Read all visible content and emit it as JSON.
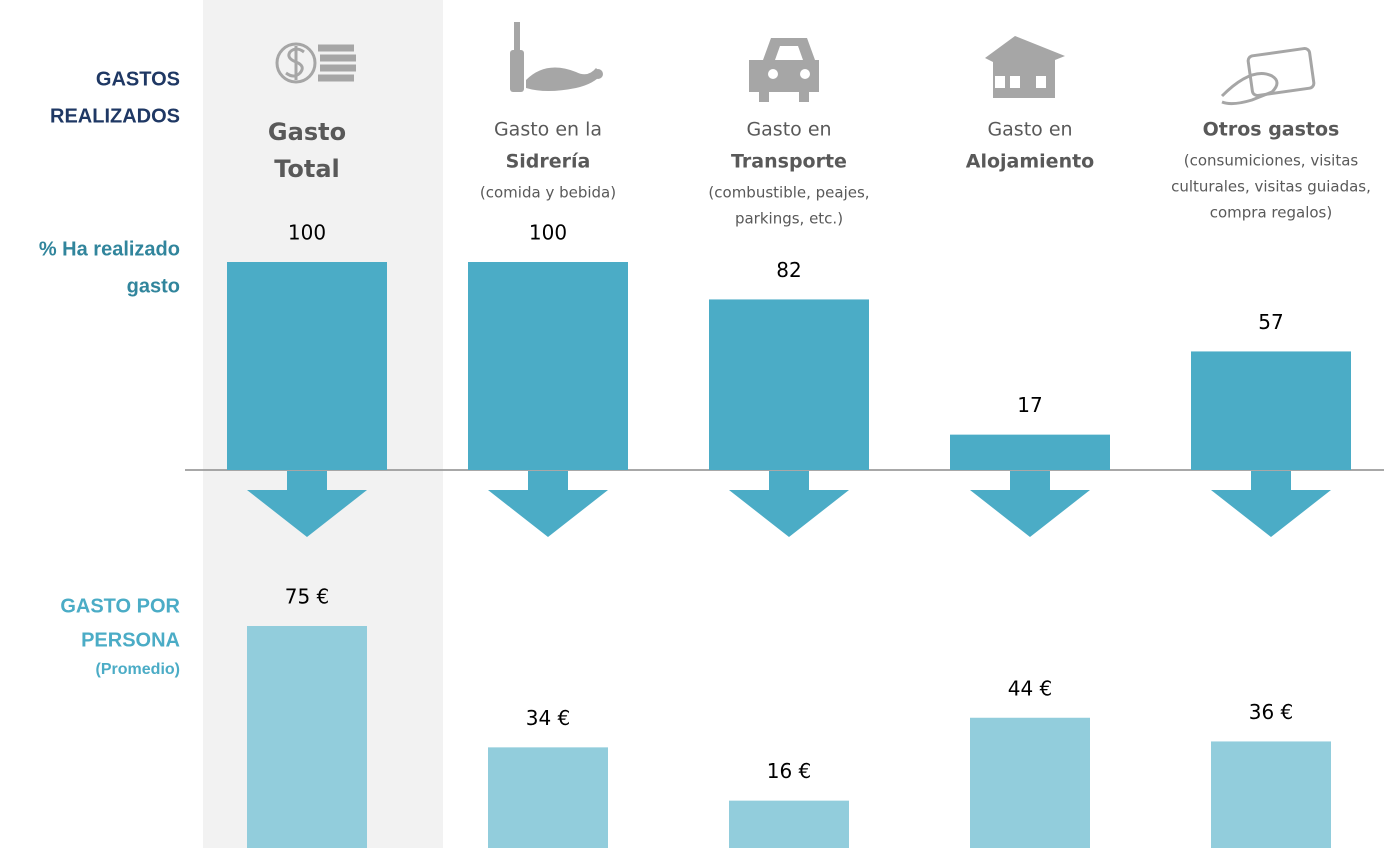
{
  "header": [
    "GASTOS",
    "REALIZADOS"
  ],
  "columns": [
    {
      "bold": [
        "Gasto",
        "Total"
      ]
    },
    {
      "light": "Gasto en la",
      "bold": [
        "Sidrería"
      ],
      "note": [
        "(comida y bebida)"
      ]
    },
    {
      "light": "Gasto en",
      "bold": [
        "Transporte"
      ],
      "note": [
        "(combustible, peajes,",
        "parkings, etc.)"
      ]
    },
    {
      "light": "Gasto en",
      "bold": [
        "Alojamiento"
      ]
    },
    {
      "bold": [
        "Otros gastos"
      ],
      "note": [
        "(consumiciones, visitas",
        "culturales, visitas guiadas,",
        "compra regalos)"
      ]
    }
  ],
  "chart_data": [
    {
      "type": "bar",
      "title": [
        "% Ha realizado",
        "gasto"
      ],
      "values": [
        100,
        100,
        82,
        17,
        57
      ],
      "color": "#4bacc6",
      "ylim": [
        0,
        100
      ]
    },
    {
      "type": "bar",
      "title": [
        "GASTO POR",
        "PERSONA"
      ],
      "subtitle": "(Promedio)",
      "values": [
        75,
        34,
        16,
        44,
        36
      ],
      "value_labels": [
        "75 €",
        "34 €",
        "16 €",
        "44 €",
        "36 €"
      ],
      "color": "#92cddc",
      "ylim": [
        0,
        100
      ]
    }
  ]
}
